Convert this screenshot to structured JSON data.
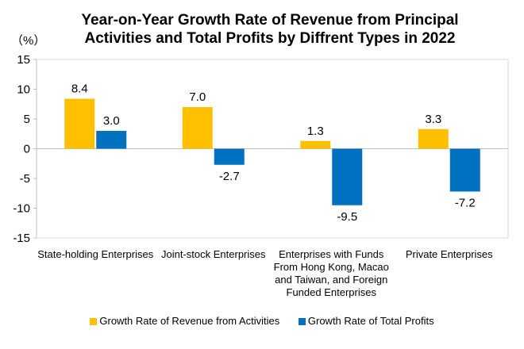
{
  "chart_data": {
    "type": "bar",
    "title": "Year-on-Year Growth Rate of Revenue from Principal Activities and Total Profits by Diffrent Types in 2022",
    "unit": "（%）",
    "categories": [
      [
        "State-holding Enterprises"
      ],
      [
        "Joint-stock Enterprises"
      ],
      [
        "Enterprises with Funds",
        "From Hong Kong, Macao",
        "and Taiwan, and Foreign",
        "Funded Enterprises"
      ],
      [
        "Private Enterprises"
      ]
    ],
    "series": [
      {
        "name": "Growth Rate of Revenue from Activities",
        "color": "#FFC000",
        "values": [
          8.4,
          7.0,
          1.3,
          3.3
        ],
        "labels": [
          "8.4",
          "7.0",
          "1.3",
          "3.3"
        ]
      },
      {
        "name": "Growth Rate of Total Profits",
        "color": "#0070C0",
        "values": [
          3.0,
          -2.7,
          -9.5,
          -7.2
        ],
        "labels": [
          "3.0",
          "-2.7",
          "-9.5",
          "-7.2"
        ]
      }
    ],
    "ylim": [
      -15,
      15
    ],
    "yticks": [
      "15",
      "10",
      "5",
      "0",
      "-5",
      "-10",
      "-15"
    ],
    "ytick_values": [
      15,
      10,
      5,
      0,
      -5,
      -10,
      -15
    ],
    "legend_position": "bottom",
    "grid": false
  }
}
